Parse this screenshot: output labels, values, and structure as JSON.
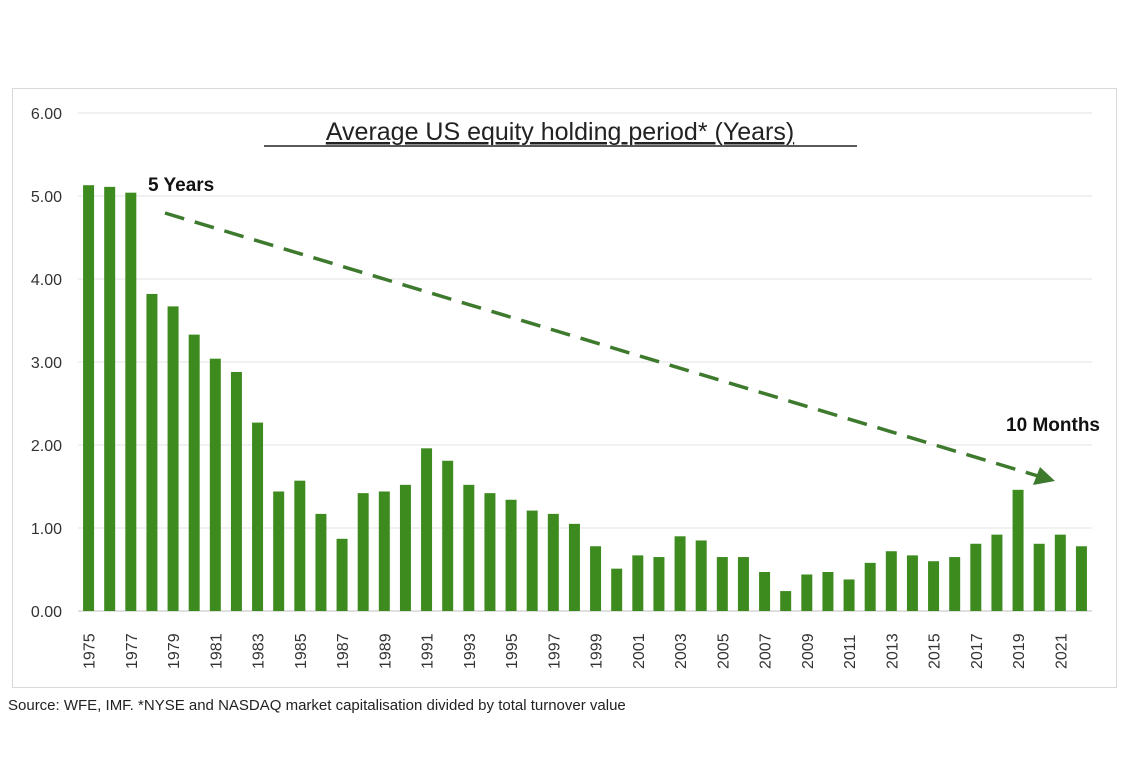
{
  "chart_data": {
    "type": "bar",
    "title": "Average US equity holding period* (Years)",
    "categories": [
      "1975",
      "1976",
      "1977",
      "1978",
      "1979",
      "1980",
      "1981",
      "1982",
      "1983",
      "1984",
      "1985",
      "1986",
      "1987",
      "1988",
      "1989",
      "1990",
      "1991",
      "1992",
      "1993",
      "1994",
      "1995",
      "1996",
      "1997",
      "1998",
      "1999",
      "2000",
      "2001",
      "2002",
      "2003",
      "2004",
      "2005",
      "2006",
      "2007",
      "2008",
      "2009",
      "2010",
      "2011",
      "2012",
      "2013",
      "2014",
      "2015",
      "2016",
      "2017",
      "2018",
      "2019",
      "2020",
      "2021",
      "2022"
    ],
    "x_tick_labels": [
      "1975",
      "1977",
      "1979",
      "1981",
      "1983",
      "1985",
      "1987",
      "1989",
      "1991",
      "1993",
      "1995",
      "1997",
      "1999",
      "2001",
      "2003",
      "2005",
      "2007",
      "2009",
      "2011",
      "2013",
      "2015",
      "2017",
      "2019",
      "2021"
    ],
    "values": [
      5.13,
      5.11,
      5.04,
      3.82,
      3.67,
      3.33,
      3.04,
      2.88,
      2.27,
      1.44,
      1.57,
      1.17,
      0.87,
      1.42,
      1.44,
      1.52,
      1.96,
      1.81,
      1.52,
      1.42,
      1.34,
      1.21,
      1.17,
      1.05,
      0.78,
      0.51,
      0.67,
      0.65,
      0.9,
      0.85,
      0.65,
      0.65,
      0.47,
      0.24,
      0.44,
      0.47,
      0.38,
      0.58,
      0.72,
      0.67,
      0.6,
      0.65,
      0.81,
      0.92,
      1.46,
      0.81,
      0.92,
      0.78
    ],
    "y_tick_labels": [
      "0.00",
      "1.00",
      "2.00",
      "3.00",
      "4.00",
      "5.00",
      "6.00"
    ],
    "ylim": [
      0,
      6
    ],
    "grid": true,
    "bar_color": "#3d8a1f",
    "annotations": [
      {
        "text": "5 Years"
      },
      {
        "text": "10 Months"
      }
    ],
    "trend_arrow_color": "#3e7a2e"
  },
  "source_text": "Source: WFE, IMF. *NYSE and NASDAQ market capitalisation divided by total turnover value"
}
